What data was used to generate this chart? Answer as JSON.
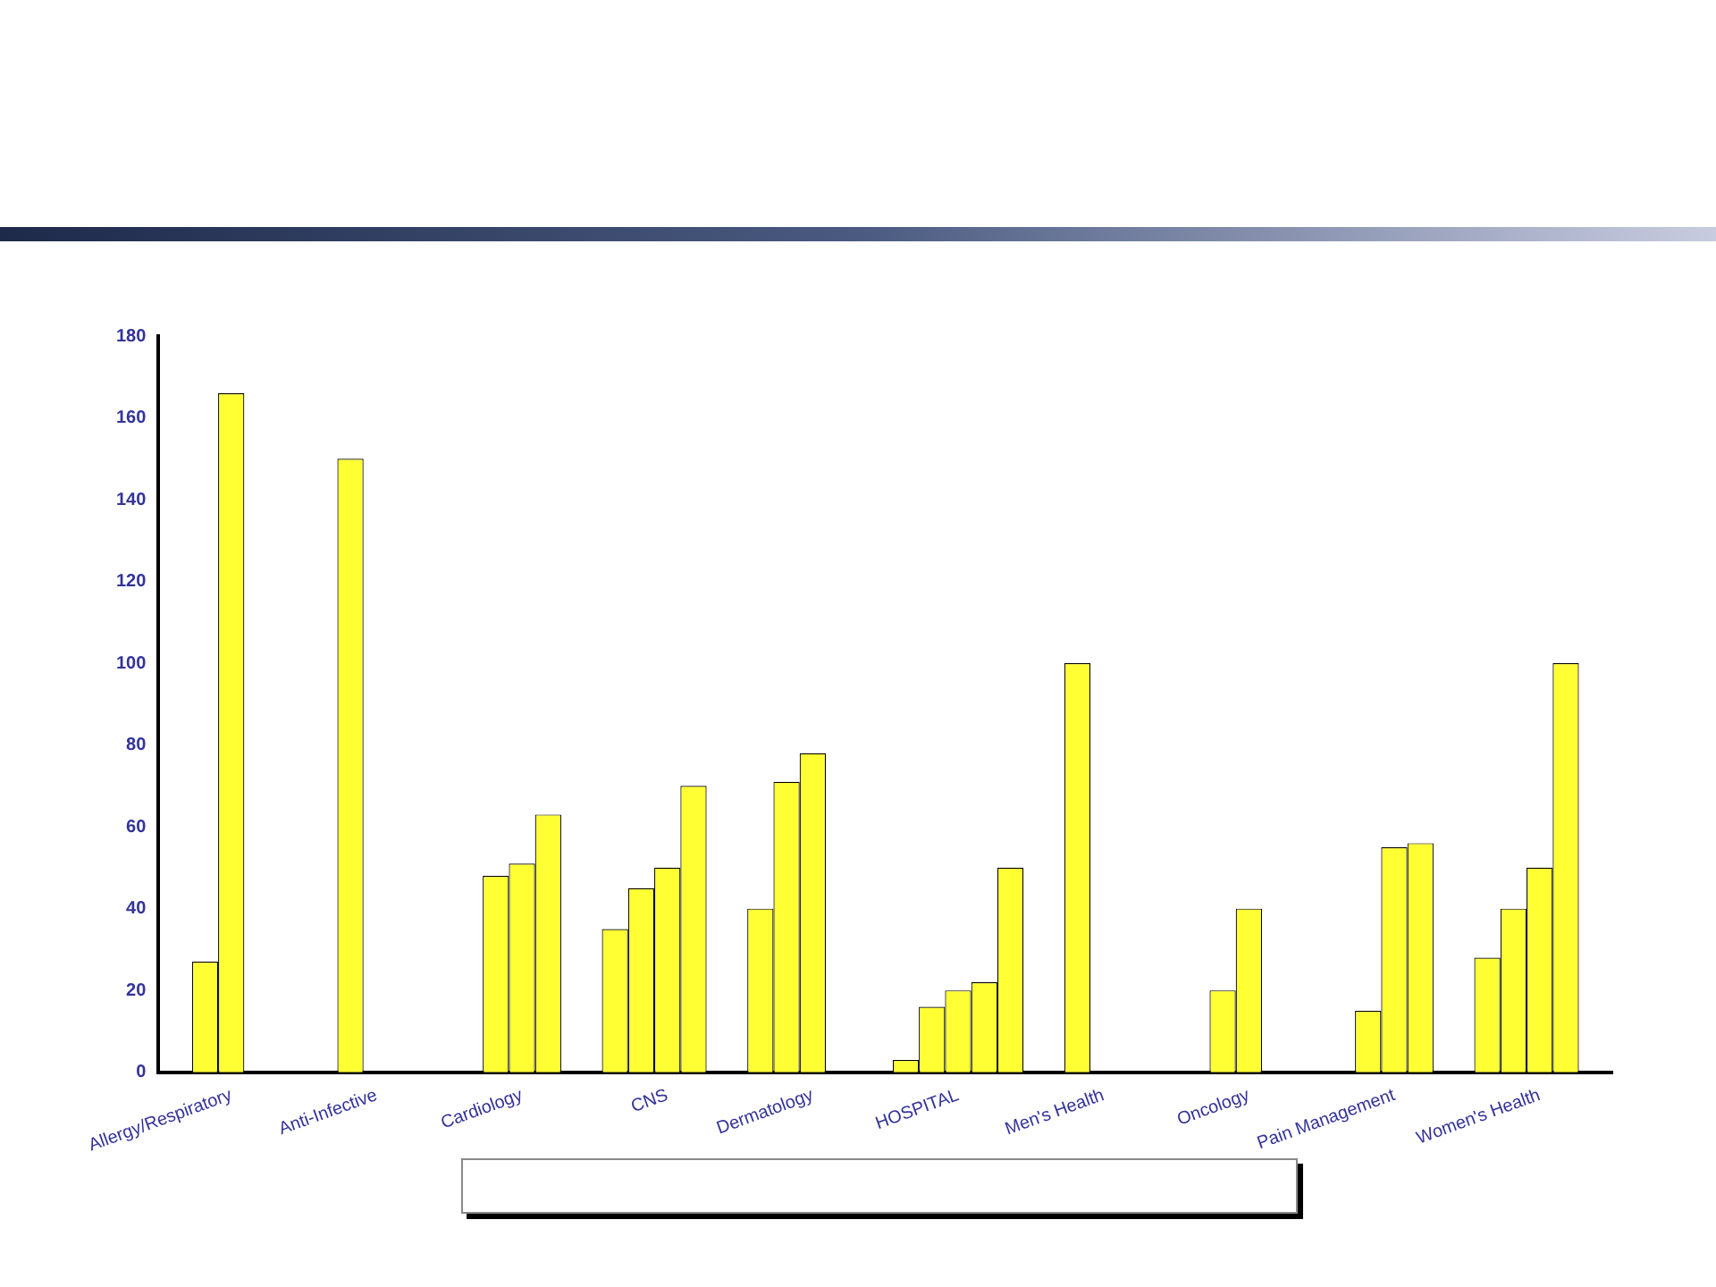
{
  "chart_data": {
    "type": "bar",
    "categories": [
      "Allergy/Respiratory",
      "Anti-Infective",
      "Cardiology",
      "CNS",
      "Dermatology",
      "HOSPITAL",
      "Men's Health",
      "Oncology",
      "Pain Management",
      "Women's Health"
    ],
    "series": [
      {
        "color": "#ffff33",
        "values": [
          null,
          null,
          null,
          35,
          40,
          3,
          null,
          null,
          null,
          28
        ]
      },
      {
        "color": "#ffff33",
        "values": [
          27,
          150,
          48,
          45,
          71,
          16,
          100,
          20,
          15,
          40
        ]
      },
      {
        "color": "#ffff33",
        "values": [
          166,
          null,
          51,
          50,
          78,
          20,
          null,
          40,
          55,
          50
        ]
      },
      {
        "color": "#ffff33",
        "values": [
          null,
          null,
          63,
          70,
          null,
          22,
          null,
          null,
          56,
          100
        ]
      },
      {
        "color": "#ffff33",
        "values": [
          null,
          null,
          null,
          null,
          null,
          50,
          null,
          null,
          null,
          null
        ]
      }
    ],
    "ylim": [
      0,
      180
    ],
    "yticks": [
      0,
      20,
      40,
      60,
      80,
      100,
      120,
      140,
      160,
      180
    ],
    "grid": false,
    "legend": false
  }
}
